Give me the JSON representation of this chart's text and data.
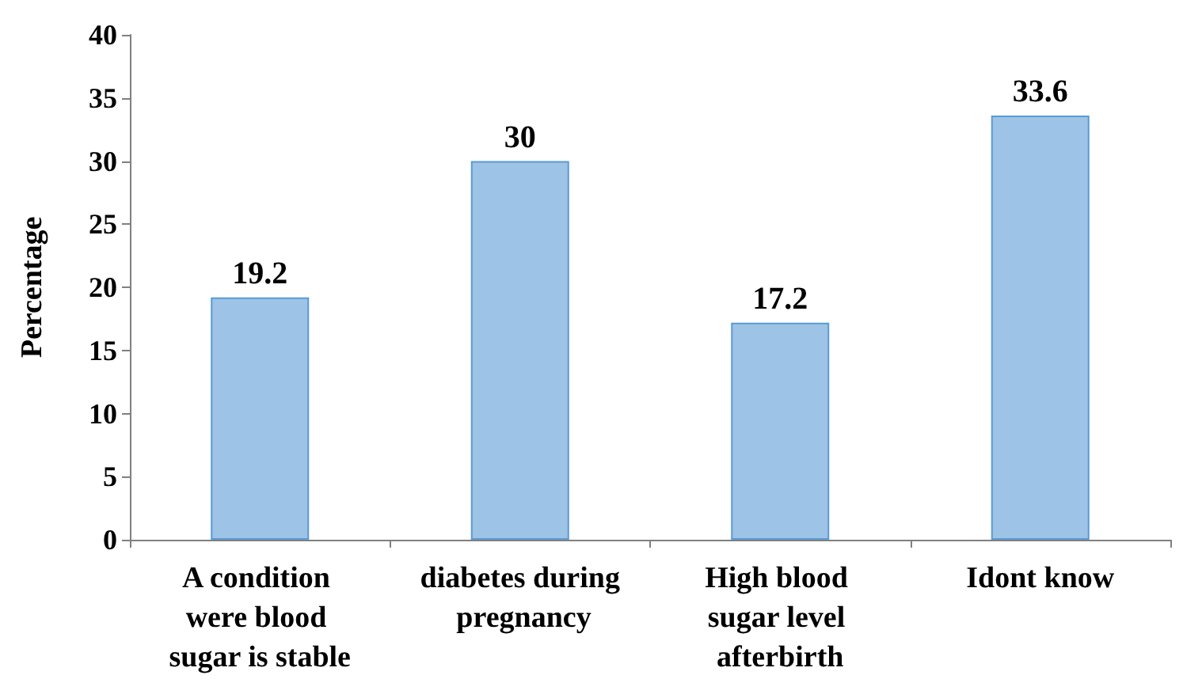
{
  "chart_data": {
    "type": "bar",
    "ylabel": "Percentage",
    "categories": [
      "A condition were blood sugar is stable",
      "diabetes during pregnancy",
      "High blood sugar level afterbirth",
      "Idont know"
    ],
    "values": [
      19.2,
      30,
      17.2,
      33.6
    ],
    "color": "#9dc3e6",
    "ylim": [
      0,
      40
    ],
    "yticks": [
      0,
      5,
      10,
      15,
      20,
      25,
      30,
      35,
      40
    ],
    "grid": false,
    "data_labels": true
  }
}
